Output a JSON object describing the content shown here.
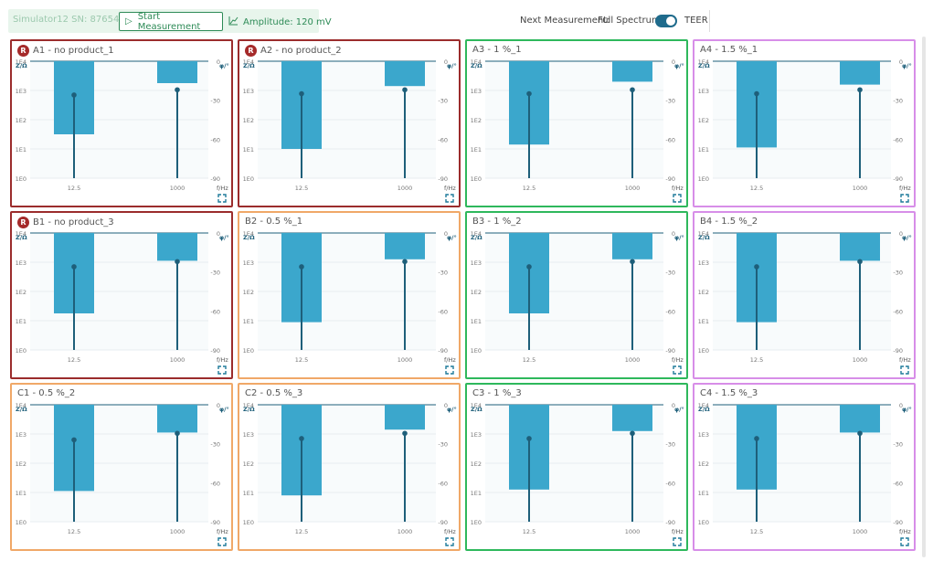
{
  "toolbar": {
    "device_label": "Simulator12 SN: 87654321",
    "start_label": "Start Measurement",
    "amplitude_label": "Amplitude: 120 mV",
    "next_label": "Next Measurement:",
    "full_label": "Full Spectrum",
    "teer_label": "TEER",
    "toggle_on": true
  },
  "axes": {
    "y_left_label": "Z/Ω",
    "y_right_label": "φ/°",
    "x_label": "f/Hz",
    "z_ticks": [
      "1E4",
      "1E3",
      "1E2",
      "1E1",
      "1E0"
    ],
    "phase_ticks": [
      "0",
      "-30",
      "-60",
      "-90"
    ],
    "x_ticks": [
      "12.5",
      "1000"
    ]
  },
  "colors": {
    "reference": "#9b2c2c",
    "green": "#2eb85c",
    "orange": "#f0a868",
    "purple": "#d78ee8",
    "bar": "#3ba7cc",
    "phase": "#1e5f7a"
  },
  "panels": [
    {
      "id": "A1",
      "title": "A1 - no product_1",
      "group": "reference",
      "ref": true,
      "chart_data": {
        "type": "bar",
        "categories": [
          "12.5",
          "1000"
        ],
        "z": [
          1.5,
          3.25
        ],
        "phase": [
          -26,
          -22
        ],
        "ylim": [
          0,
          4
        ],
        "phase_lim": [
          -90,
          0
        ]
      }
    },
    {
      "id": "A2",
      "title": "A2 - no product_2",
      "group": "reference",
      "ref": true,
      "chart_data": {
        "type": "bar",
        "categories": [
          "12.5",
          "1000"
        ],
        "z": [
          1.0,
          3.15
        ],
        "phase": [
          -25,
          -22
        ],
        "ylim": [
          0,
          4
        ],
        "phase_lim": [
          -90,
          0
        ]
      }
    },
    {
      "id": "A3",
      "title": "A3 - 1 %_1",
      "group": "green",
      "ref": false,
      "chart_data": {
        "type": "bar",
        "categories": [
          "12.5",
          "1000"
        ],
        "z": [
          1.15,
          3.3
        ],
        "phase": [
          -25,
          -22
        ],
        "ylim": [
          0,
          4
        ],
        "phase_lim": [
          -90,
          0
        ]
      }
    },
    {
      "id": "A4",
      "title": "A4 - 1.5 %_1",
      "group": "purple",
      "ref": false,
      "chart_data": {
        "type": "bar",
        "categories": [
          "12.5",
          "1000"
        ],
        "z": [
          1.05,
          3.2
        ],
        "phase": [
          -25,
          -22
        ],
        "ylim": [
          0,
          4
        ],
        "phase_lim": [
          -90,
          0
        ]
      }
    },
    {
      "id": "B1",
      "title": "B1 - no product_3",
      "group": "reference",
      "ref": true,
      "chart_data": {
        "type": "bar",
        "categories": [
          "12.5",
          "1000"
        ],
        "z": [
          1.25,
          3.05
        ],
        "phase": [
          -26,
          -22
        ],
        "ylim": [
          0,
          4
        ],
        "phase_lim": [
          -90,
          0
        ]
      }
    },
    {
      "id": "B2",
      "title": "B2 - 0.5 %_1",
      "group": "orange",
      "ref": false,
      "chart_data": {
        "type": "bar",
        "categories": [
          "12.5",
          "1000"
        ],
        "z": [
          0.95,
          3.1
        ],
        "phase": [
          -26,
          -22
        ],
        "ylim": [
          0,
          4
        ],
        "phase_lim": [
          -90,
          0
        ]
      }
    },
    {
      "id": "B3",
      "title": "B3 - 1 %_2",
      "group": "green",
      "ref": false,
      "chart_data": {
        "type": "bar",
        "categories": [
          "12.5",
          "1000"
        ],
        "z": [
          1.25,
          3.1
        ],
        "phase": [
          -26,
          -22
        ],
        "ylim": [
          0,
          4
        ],
        "phase_lim": [
          -90,
          0
        ]
      }
    },
    {
      "id": "B4",
      "title": "B4 - 1.5 %_2",
      "group": "purple",
      "ref": false,
      "chart_data": {
        "type": "bar",
        "categories": [
          "12.5",
          "1000"
        ],
        "z": [
          0.95,
          3.05
        ],
        "phase": [
          -26,
          -22
        ],
        "ylim": [
          0,
          4
        ],
        "phase_lim": [
          -90,
          0
        ]
      }
    },
    {
      "id": "C1",
      "title": "C1 - 0.5 %_2",
      "group": "orange",
      "ref": false,
      "chart_data": {
        "type": "bar",
        "categories": [
          "12.5",
          "1000"
        ],
        "z": [
          1.05,
          3.05
        ],
        "phase": [
          -27,
          -22
        ],
        "ylim": [
          0,
          4
        ],
        "phase_lim": [
          -90,
          0
        ]
      }
    },
    {
      "id": "C2",
      "title": "C2 - 0.5 %_3",
      "group": "orange",
      "ref": false,
      "chart_data": {
        "type": "bar",
        "categories": [
          "12.5",
          "1000"
        ],
        "z": [
          0.9,
          3.15
        ],
        "phase": [
          -26,
          -22
        ],
        "ylim": [
          0,
          4
        ],
        "phase_lim": [
          -90,
          0
        ]
      }
    },
    {
      "id": "C3",
      "title": "C3 - 1 %_3",
      "group": "green",
      "ref": false,
      "chart_data": {
        "type": "bar",
        "categories": [
          "12.5",
          "1000"
        ],
        "z": [
          1.1,
          3.1
        ],
        "phase": [
          -26,
          -22
        ],
        "ylim": [
          0,
          4
        ],
        "phase_lim": [
          -90,
          0
        ]
      }
    },
    {
      "id": "C4",
      "title": "C4 - 1.5 %_3",
      "group": "purple",
      "ref": false,
      "chart_data": {
        "type": "bar",
        "categories": [
          "12.5",
          "1000"
        ],
        "z": [
          1.1,
          3.05
        ],
        "phase": [
          -26,
          -22
        ],
        "ylim": [
          0,
          4
        ],
        "phase_lim": [
          -90,
          0
        ]
      }
    }
  ]
}
